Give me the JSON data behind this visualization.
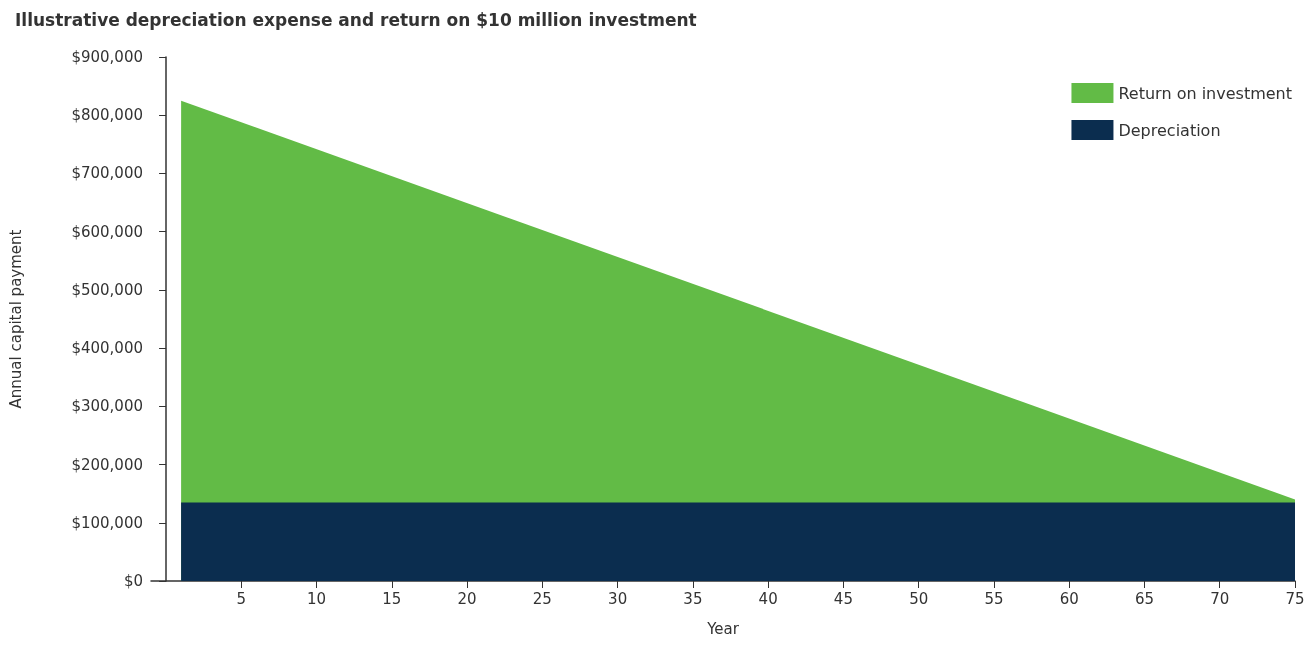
{
  "chart_data": {
    "type": "area",
    "title": "Illustrative depreciation expense and return on $10 million investment",
    "xlabel": "Year",
    "ylabel": "Annual capital payment",
    "stacked": true,
    "x": [
      1,
      75
    ],
    "series": [
      {
        "name": "Depreciation",
        "color": "#0b2d4f",
        "values": [
          135000,
          135000
        ]
      },
      {
        "name": "Return on investment",
        "color": "#62bb46",
        "values": [
          690000,
          5000
        ]
      }
    ],
    "xlim": [
      -1,
      75
    ],
    "xticks": [
      5,
      10,
      15,
      20,
      25,
      30,
      35,
      40,
      45,
      50,
      55,
      60,
      65,
      70,
      75
    ],
    "ylim": [
      0,
      900000
    ],
    "yticks": [
      {
        "value": 0,
        "label": "$0"
      },
      {
        "value": 100000,
        "label": "$100,000"
      },
      {
        "value": 200000,
        "label": "$200,000"
      },
      {
        "value": 300000,
        "label": "$300,000"
      },
      {
        "value": 400000,
        "label": "$400,000"
      },
      {
        "value": 500000,
        "label": "$500,000"
      },
      {
        "value": 600000,
        "label": "$600,000"
      },
      {
        "value": 700000,
        "label": "$700,000"
      },
      {
        "value": 800000,
        "label": "$800,000"
      },
      {
        "value": 900000,
        "label": "$900,000"
      }
    ],
    "grid": false,
    "legend": "top right"
  }
}
